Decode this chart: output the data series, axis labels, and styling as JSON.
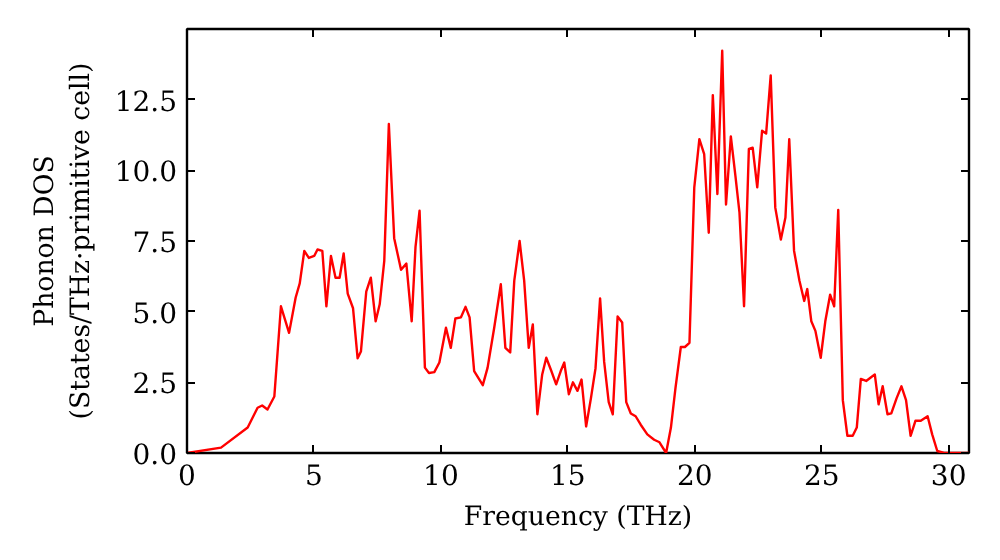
{
  "chart_data": {
    "type": "line",
    "xlabel": "Frequency (THz)",
    "ylabel": "Phonon DOS\n(States/THz·primitive cell)",
    "xlim": [
      0,
      30.8
    ],
    "ylim": [
      0,
      15
    ],
    "xticks": [
      0,
      5,
      10,
      15,
      20,
      25,
      30
    ],
    "yticks": [
      {
        "value": 0,
        "label": "0.0"
      },
      {
        "value": 2.5,
        "label": "2.5"
      },
      {
        "value": 5,
        "label": "5.0"
      },
      {
        "value": 7.5,
        "label": "7.5"
      },
      {
        "value": 10,
        "label": "10.0"
      },
      {
        "value": 12.5,
        "label": "12.5"
      }
    ],
    "grid": false,
    "marker": "none",
    "line_style": "solid",
    "series": [
      {
        "color": "#ff0000",
        "x": [
          0,
          1.34,
          2.39,
          2.78,
          2.96,
          3.17,
          3.44,
          3.7,
          4.02,
          4.28,
          4.44,
          4.62,
          4.8,
          5.01,
          5.14,
          5.33,
          5.49,
          5.67,
          5.85,
          6.01,
          6.17,
          6.33,
          6.54,
          6.72,
          6.85,
          7.06,
          7.24,
          7.43,
          7.59,
          7.77,
          7.95,
          8.16,
          8.43,
          8.64,
          8.85,
          9.0,
          9.16,
          9.37,
          9.53,
          9.74,
          9.94,
          10.2,
          10.39,
          10.57,
          10.79,
          10.97,
          11.13,
          11.31,
          11.65,
          11.84,
          12.1,
          12.36,
          12.54,
          12.73,
          12.89,
          13.1,
          13.28,
          13.46,
          13.62,
          13.8,
          13.99,
          14.15,
          14.35,
          14.54,
          14.72,
          14.86,
          15.04,
          15.2,
          15.38,
          15.54,
          15.72,
          15.91,
          16.09,
          16.27,
          16.43,
          16.61,
          16.77,
          16.96,
          17.14,
          17.3,
          17.48,
          17.67,
          17.87,
          18.13,
          18.4,
          18.61,
          18.87,
          19.06,
          19.24,
          19.45,
          19.61,
          19.79,
          19.98,
          20.18,
          20.37,
          20.55,
          20.71,
          20.89,
          21.08,
          21.23,
          21.42,
          21.6,
          21.76,
          21.94,
          22.13,
          22.28,
          22.46,
          22.65,
          22.81,
          22.99,
          23.17,
          23.39,
          23.57,
          23.72,
          23.91,
          24.12,
          24.31,
          24.43,
          24.59,
          24.75,
          24.96,
          25.14,
          25.33,
          25.49,
          25.65,
          25.83,
          26.01,
          26.22,
          26.38,
          26.54,
          26.75,
          26.93,
          27.09,
          27.24,
          27.4,
          27.59,
          27.74,
          27.95,
          28.14,
          28.32,
          28.5,
          28.69,
          28.9,
          29.17,
          29.35,
          29.55,
          29.82,
          30.8
        ],
        "values": [
          0,
          0.19,
          0.9,
          1.6,
          1.68,
          1.54,
          2.0,
          5.19,
          4.25,
          5.5,
          6.0,
          7.15,
          6.9,
          6.97,
          7.2,
          7.15,
          5.19,
          6.97,
          6.2,
          6.2,
          7.06,
          5.64,
          5.12,
          3.35,
          3.59,
          5.71,
          6.2,
          4.66,
          5.26,
          6.8,
          11.64,
          7.6,
          6.48,
          6.7,
          4.66,
          7.29,
          8.57,
          3.02,
          2.83,
          2.86,
          3.2,
          4.43,
          3.72,
          4.76,
          4.8,
          5.17,
          4.8,
          2.9,
          2.4,
          3.02,
          4.43,
          5.97,
          3.72,
          3.56,
          6.1,
          7.5,
          6.1,
          3.72,
          4.55,
          1.37,
          2.78,
          3.37,
          2.9,
          2.43,
          2.9,
          3.2,
          2.08,
          2.5,
          2.2,
          2.6,
          0.94,
          1.94,
          3.0,
          5.47,
          3.23,
          1.8,
          1.37,
          4.83,
          4.62,
          1.8,
          1.4,
          1.3,
          1.0,
          0.66,
          0.47,
          0.38,
          0,
          0.9,
          2.3,
          3.75,
          3.75,
          3.9,
          9.4,
          11.1,
          10.57,
          7.79,
          12.66,
          9.16,
          14.23,
          8.79,
          11.2,
          9.8,
          8.5,
          5.19,
          10.76,
          10.8,
          9.4,
          11.4,
          11.3,
          13.36,
          8.68,
          7.55,
          8.33,
          11.1,
          7.15,
          6.1,
          5.38,
          5.8,
          4.66,
          4.32,
          3.37,
          4.66,
          5.6,
          5.19,
          8.6,
          1.87,
          0.61,
          0.61,
          0.9,
          2.62,
          2.55,
          2.67,
          2.78,
          1.72,
          2.36,
          1.37,
          1.4,
          1.94,
          2.36,
          1.87,
          0.61,
          1.14,
          1.14,
          1.3,
          0.66,
          0.07,
          0,
          0
        ]
      }
    ]
  }
}
